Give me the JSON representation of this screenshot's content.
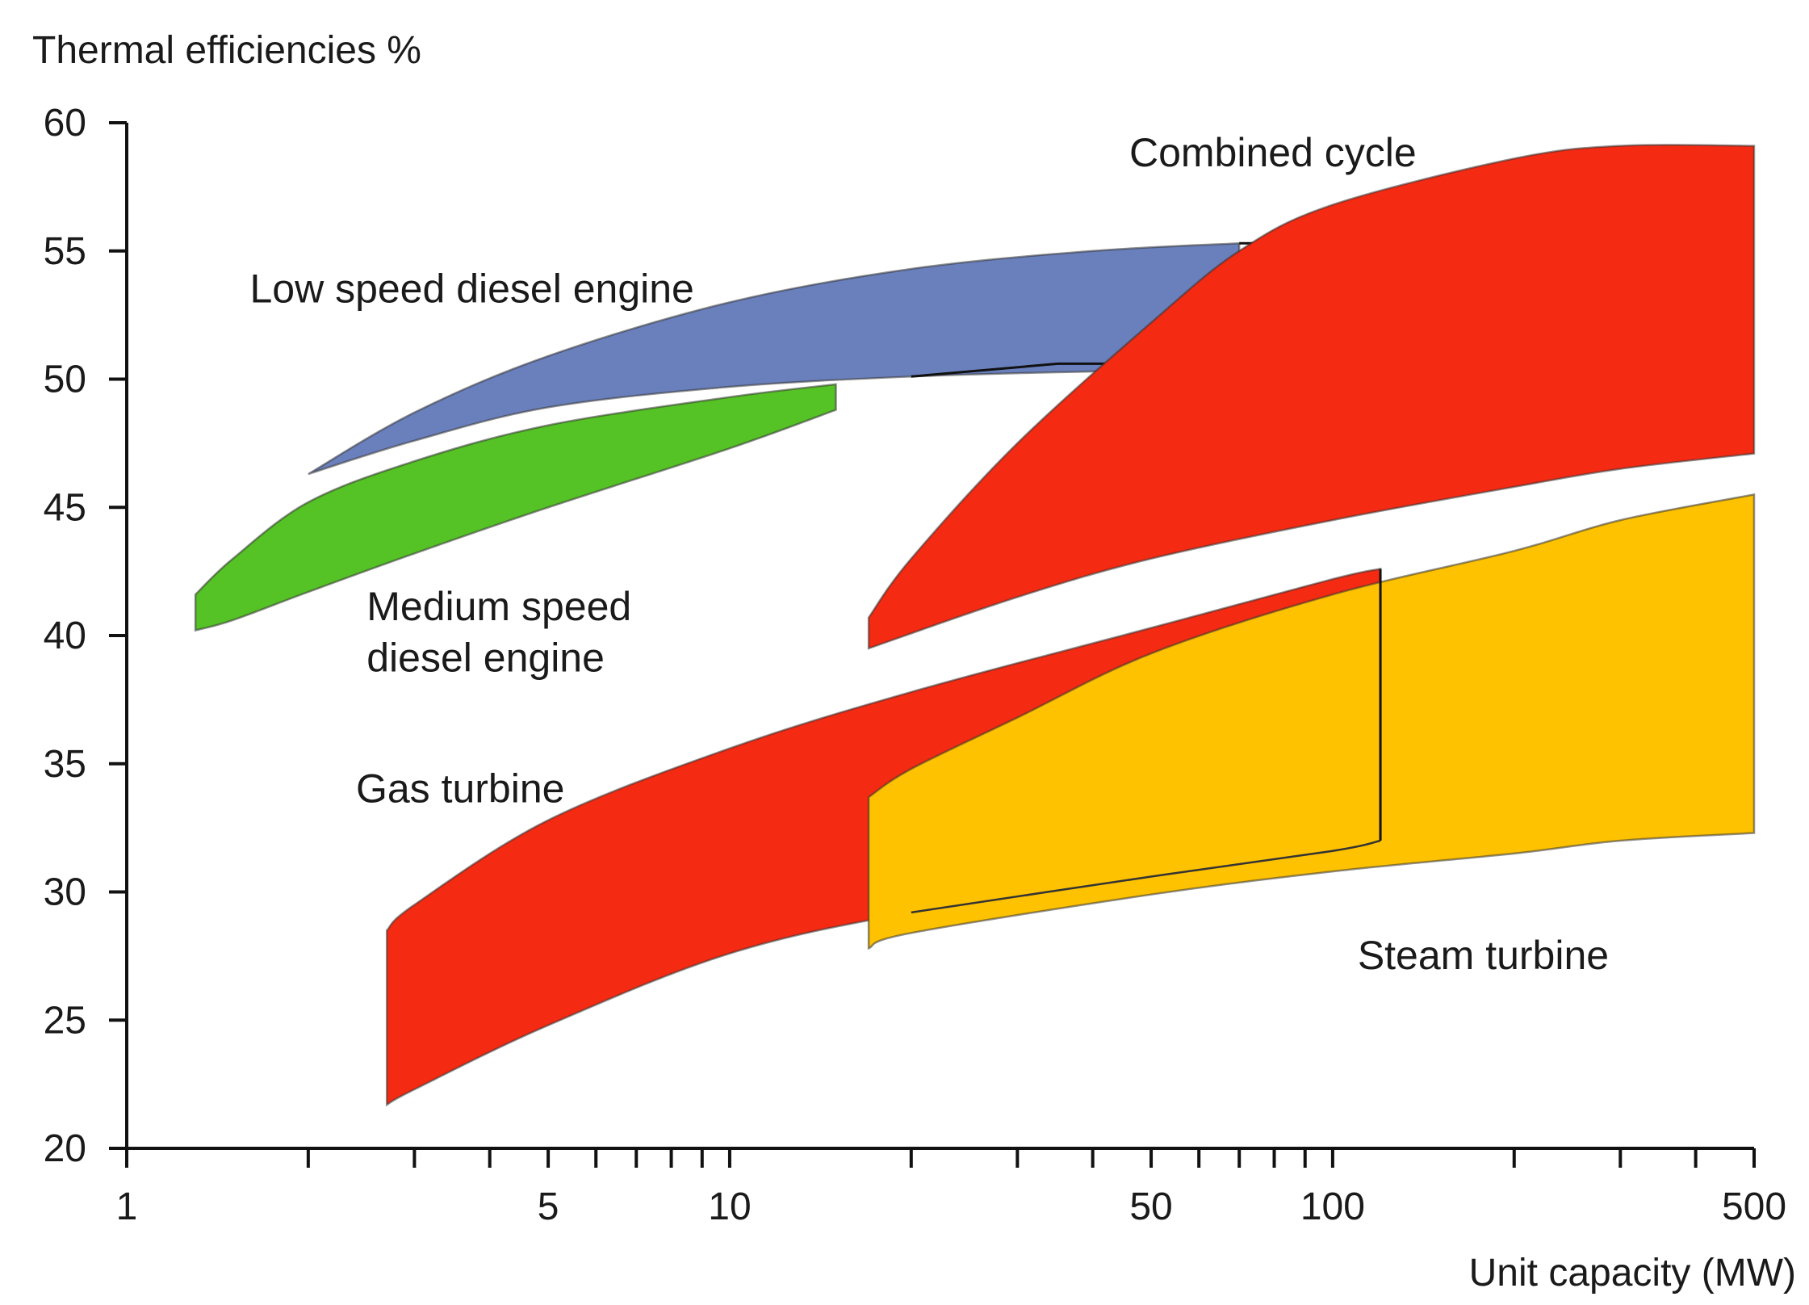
{
  "chart_data": {
    "type": "area",
    "title": "",
    "ylabel": "Thermal efficiencies %",
    "xlabel": "Unit capacity (MW)",
    "xscale": "log",
    "xlim": [
      1,
      500
    ],
    "ylim": [
      20,
      60
    ],
    "xticks": [
      1,
      2,
      3,
      4,
      5,
      6,
      7,
      8,
      9,
      10,
      20,
      30,
      40,
      50,
      60,
      70,
      80,
      90,
      100,
      200,
      300,
      400,
      500
    ],
    "xtick_labels": [
      {
        "value": 1,
        "label": "1"
      },
      {
        "value": 5,
        "label": "5"
      },
      {
        "value": 10,
        "label": "10"
      },
      {
        "value": 50,
        "label": "50"
      },
      {
        "value": 100,
        "label": "100"
      },
      {
        "value": 500,
        "label": "500"
      }
    ],
    "yticks": [
      20,
      25,
      30,
      35,
      40,
      45,
      50,
      55,
      60
    ],
    "ytick_labels": [
      "20",
      "25",
      "30",
      "35",
      "40",
      "45",
      "50",
      "55",
      "60"
    ],
    "series": [
      {
        "name": "Low speed diesel engine",
        "color": "#6a80bd",
        "upper": [
          [
            2,
            46.3
          ],
          [
            3,
            48.7
          ],
          [
            5,
            50.9
          ],
          [
            10,
            53.0
          ],
          [
            20,
            54.3
          ],
          [
            40,
            55.0
          ],
          [
            70,
            55.3
          ]
        ],
        "lower": [
          [
            2,
            46.3
          ],
          [
            3,
            47.6
          ],
          [
            5,
            48.9
          ],
          [
            10,
            49.7
          ],
          [
            20,
            50.1
          ],
          [
            40,
            50.3
          ],
          [
            70,
            50.4
          ]
        ],
        "outline": [
          [
            70,
            55.3
          ],
          [
            90,
            55.3
          ],
          [
            90,
            50.6
          ],
          [
            35,
            50.6
          ],
          [
            20,
            50.1
          ]
        ]
      },
      {
        "name": "Medium speed diesel engine",
        "color": "#55c225",
        "upper": [
          [
            1.3,
            41.6
          ],
          [
            1.5,
            43.0
          ],
          [
            2,
            45.2
          ],
          [
            3,
            46.8
          ],
          [
            5,
            48.2
          ],
          [
            10,
            49.3
          ],
          [
            15,
            49.8
          ]
        ],
        "lower": [
          [
            1.3,
            40.2
          ],
          [
            1.5,
            40.6
          ],
          [
            2,
            41.7
          ],
          [
            3,
            43.2
          ],
          [
            5,
            45.0
          ],
          [
            10,
            47.3
          ],
          [
            15,
            48.8
          ]
        ]
      },
      {
        "name": "Combined cycle",
        "color": "#f52a12",
        "upper": [
          [
            17,
            40.7
          ],
          [
            20,
            43.0
          ],
          [
            30,
            47.5
          ],
          [
            50,
            52.2
          ],
          [
            70,
            55.0
          ],
          [
            100,
            56.8
          ],
          [
            200,
            58.6
          ],
          [
            300,
            59.1
          ],
          [
            500,
            59.1
          ]
        ],
        "lower": [
          [
            17,
            39.5
          ],
          [
            30,
            41.5
          ],
          [
            50,
            43.0
          ],
          [
            100,
            44.5
          ],
          [
            200,
            45.8
          ],
          [
            300,
            46.5
          ],
          [
            500,
            47.1
          ]
        ]
      },
      {
        "name": "Gas turbine",
        "color": "#f52a12",
        "upper": [
          [
            2.7,
            28.5
          ],
          [
            3,
            29.5
          ],
          [
            5,
            32.8
          ],
          [
            10,
            35.6
          ],
          [
            20,
            37.8
          ],
          [
            50,
            40.3
          ],
          [
            100,
            42.2
          ],
          [
            120,
            42.6
          ]
        ],
        "lower": [
          [
            2.7,
            21.7
          ],
          [
            3,
            22.3
          ],
          [
            5,
            24.8
          ],
          [
            10,
            27.6
          ],
          [
            20,
            29.2
          ],
          [
            50,
            30.6
          ],
          [
            100,
            31.6
          ],
          [
            120,
            32.0
          ]
        ]
      },
      {
        "name": "Steam turbine",
        "color": "#fec200",
        "upper": [
          [
            17,
            33.7
          ],
          [
            20,
            34.8
          ],
          [
            30,
            36.8
          ],
          [
            50,
            39.3
          ],
          [
            100,
            41.6
          ],
          [
            200,
            43.3
          ],
          [
            300,
            44.5
          ],
          [
            500,
            45.5
          ]
        ],
        "lower": [
          [
            17,
            27.8
          ],
          [
            20,
            28.4
          ],
          [
            50,
            29.9
          ],
          [
            100,
            30.8
          ],
          [
            200,
            31.5
          ],
          [
            300,
            32.0
          ],
          [
            500,
            32.3
          ]
        ]
      }
    ],
    "annotations": [
      {
        "text": "Low speed diesel engine",
        "x": 1.6,
        "y": 53.0
      },
      {
        "text": "Medium speed",
        "x": 2.5,
        "y": 40.6
      },
      {
        "text": "diesel engine",
        "x": 2.5,
        "y": 38.6
      },
      {
        "text": "Combined cycle",
        "x": 46,
        "y": 58.3
      },
      {
        "text": "Gas turbine",
        "x": 2.4,
        "y": 33.5
      },
      {
        "text": "Steam turbine",
        "x": 110,
        "y": 27.0
      }
    ]
  }
}
